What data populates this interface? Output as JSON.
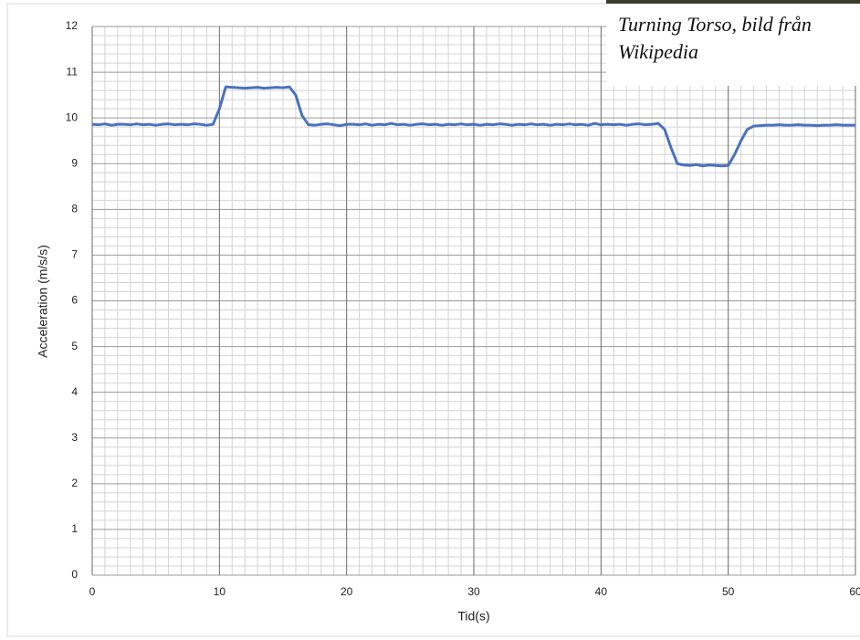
{
  "chart_data": {
    "type": "line",
    "xlabel": "Tid(s)",
    "ylabel": "Acceleration (m/s/s)",
    "annotations": [
      "Turning Torso, bild från",
      "Wikipedia"
    ],
    "xlim": [
      0,
      60
    ],
    "xticks": [
      0,
      10,
      20,
      30,
      40,
      50,
      60
    ],
    "ylim": [
      0,
      12
    ],
    "yticks": [
      0,
      1,
      2,
      3,
      4,
      5,
      6,
      7,
      8,
      9,
      10,
      11,
      12
    ],
    "grid": true,
    "x": [
      0,
      0.5,
      1,
      1.5,
      2,
      2.5,
      3,
      3.5,
      4,
      4.5,
      5,
      5.5,
      6,
      6.5,
      7,
      7.5,
      8,
      8.5,
      9,
      9.5,
      10,
      10.5,
      11,
      11.5,
      12,
      12.5,
      13,
      13.5,
      14,
      14.5,
      15,
      15.5,
      16,
      16.5,
      17,
      17.5,
      18,
      18.5,
      19,
      19.5,
      20,
      20.5,
      21,
      21.5,
      22,
      22.5,
      23,
      23.5,
      24,
      24.5,
      25,
      25.5,
      26,
      26.5,
      27,
      27.5,
      28,
      28.5,
      29,
      29.5,
      30,
      30.5,
      31,
      31.5,
      32,
      32.5,
      33,
      33.5,
      34,
      34.5,
      35,
      35.5,
      36,
      36.5,
      37,
      37.5,
      38,
      38.5,
      39,
      39.5,
      40,
      40.5,
      41,
      41.5,
      42,
      42.5,
      43,
      43.5,
      44,
      44.5,
      45,
      45.5,
      46,
      46.5,
      47,
      47.5,
      48,
      48.5,
      49,
      49.5,
      50,
      50.5,
      51,
      51.5,
      52,
      52.5,
      53,
      53.5,
      54,
      54.5,
      55,
      55.5,
      56,
      56.5,
      57,
      57.5,
      58,
      58.5,
      59,
      59.5,
      60
    ],
    "series": [
      {
        "color": "#4a72c0",
        "values": [
          9.86,
          9.85,
          9.87,
          9.84,
          9.86,
          9.86,
          9.85,
          9.87,
          9.85,
          9.86,
          9.84,
          9.86,
          9.87,
          9.85,
          9.86,
          9.85,
          9.87,
          9.86,
          9.84,
          9.86,
          10.2,
          10.68,
          10.67,
          10.66,
          10.65,
          10.66,
          10.67,
          10.65,
          10.66,
          10.67,
          10.66,
          10.68,
          10.5,
          10.05,
          9.85,
          9.84,
          9.86,
          9.87,
          9.85,
          9.83,
          9.86,
          9.86,
          9.85,
          9.87,
          9.84,
          9.86,
          9.85,
          9.88,
          9.85,
          9.86,
          9.84,
          9.86,
          9.87,
          9.85,
          9.86,
          9.84,
          9.86,
          9.85,
          9.87,
          9.85,
          9.86,
          9.84,
          9.86,
          9.85,
          9.87,
          9.86,
          9.84,
          9.86,
          9.85,
          9.87,
          9.85,
          9.86,
          9.84,
          9.86,
          9.85,
          9.87,
          9.85,
          9.86,
          9.84,
          9.88,
          9.85,
          9.86,
          9.85,
          9.86,
          9.84,
          9.86,
          9.87,
          9.85,
          9.86,
          9.88,
          9.75,
          9.35,
          9.0,
          8.97,
          8.96,
          8.98,
          8.95,
          8.97,
          8.96,
          8.95,
          8.96,
          9.2,
          9.5,
          9.75,
          9.82,
          9.83,
          9.84,
          9.84,
          9.85,
          9.84,
          9.84,
          9.85,
          9.84,
          9.84,
          9.83,
          9.84,
          9.84,
          9.85,
          9.84,
          9.84,
          9.84
        ]
      }
    ]
  }
}
